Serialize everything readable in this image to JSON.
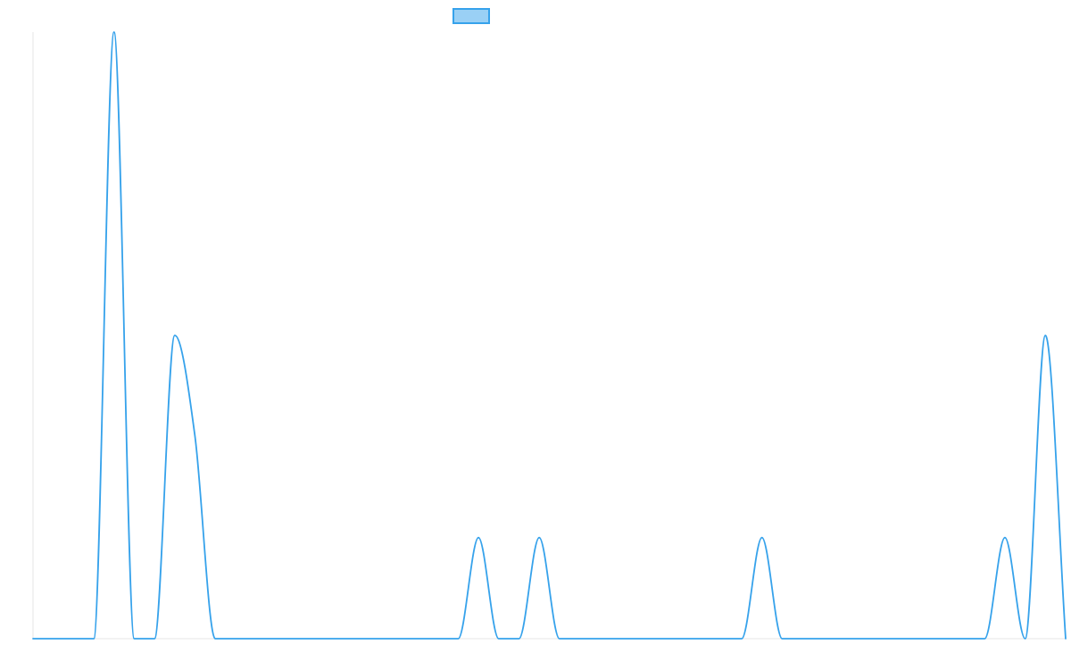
{
  "chart_data": {
    "type": "line",
    "title": "",
    "xlabel": "",
    "ylabel": "",
    "x": [
      0,
      1,
      2,
      3,
      4,
      5,
      6,
      7,
      8,
      9,
      10,
      11,
      12,
      13,
      14,
      15,
      16,
      17,
      18,
      19,
      20,
      21,
      22,
      23,
      24,
      25,
      26,
      27,
      28,
      29,
      30,
      31,
      32,
      33,
      34,
      35,
      36,
      37,
      38,
      39,
      40,
      41,
      42,
      43,
      44,
      45,
      46,
      47,
      48,
      49,
      50,
      51
    ],
    "series": [
      {
        "name": "",
        "values": [
          0,
          0,
          0,
          0,
          6,
          0,
          0,
          3,
          2,
          0,
          0,
          0,
          0,
          0,
          0,
          0,
          0,
          0,
          0,
          0,
          0,
          0,
          1,
          0,
          0,
          1,
          0,
          0,
          0,
          0,
          0,
          0,
          0,
          0,
          0,
          0,
          1,
          0,
          0,
          0,
          0,
          0,
          0,
          0,
          0,
          0,
          0,
          0,
          1,
          0,
          3,
          0
        ]
      }
    ],
    "xlim": [
      0,
      51
    ],
    "ylim": [
      0,
      6
    ],
    "grid": false,
    "legend_position": "top-center",
    "colors": {
      "line": "#36a2eb",
      "legend_fill": "#9ad0f5",
      "axis": "#e6e6e6"
    }
  }
}
